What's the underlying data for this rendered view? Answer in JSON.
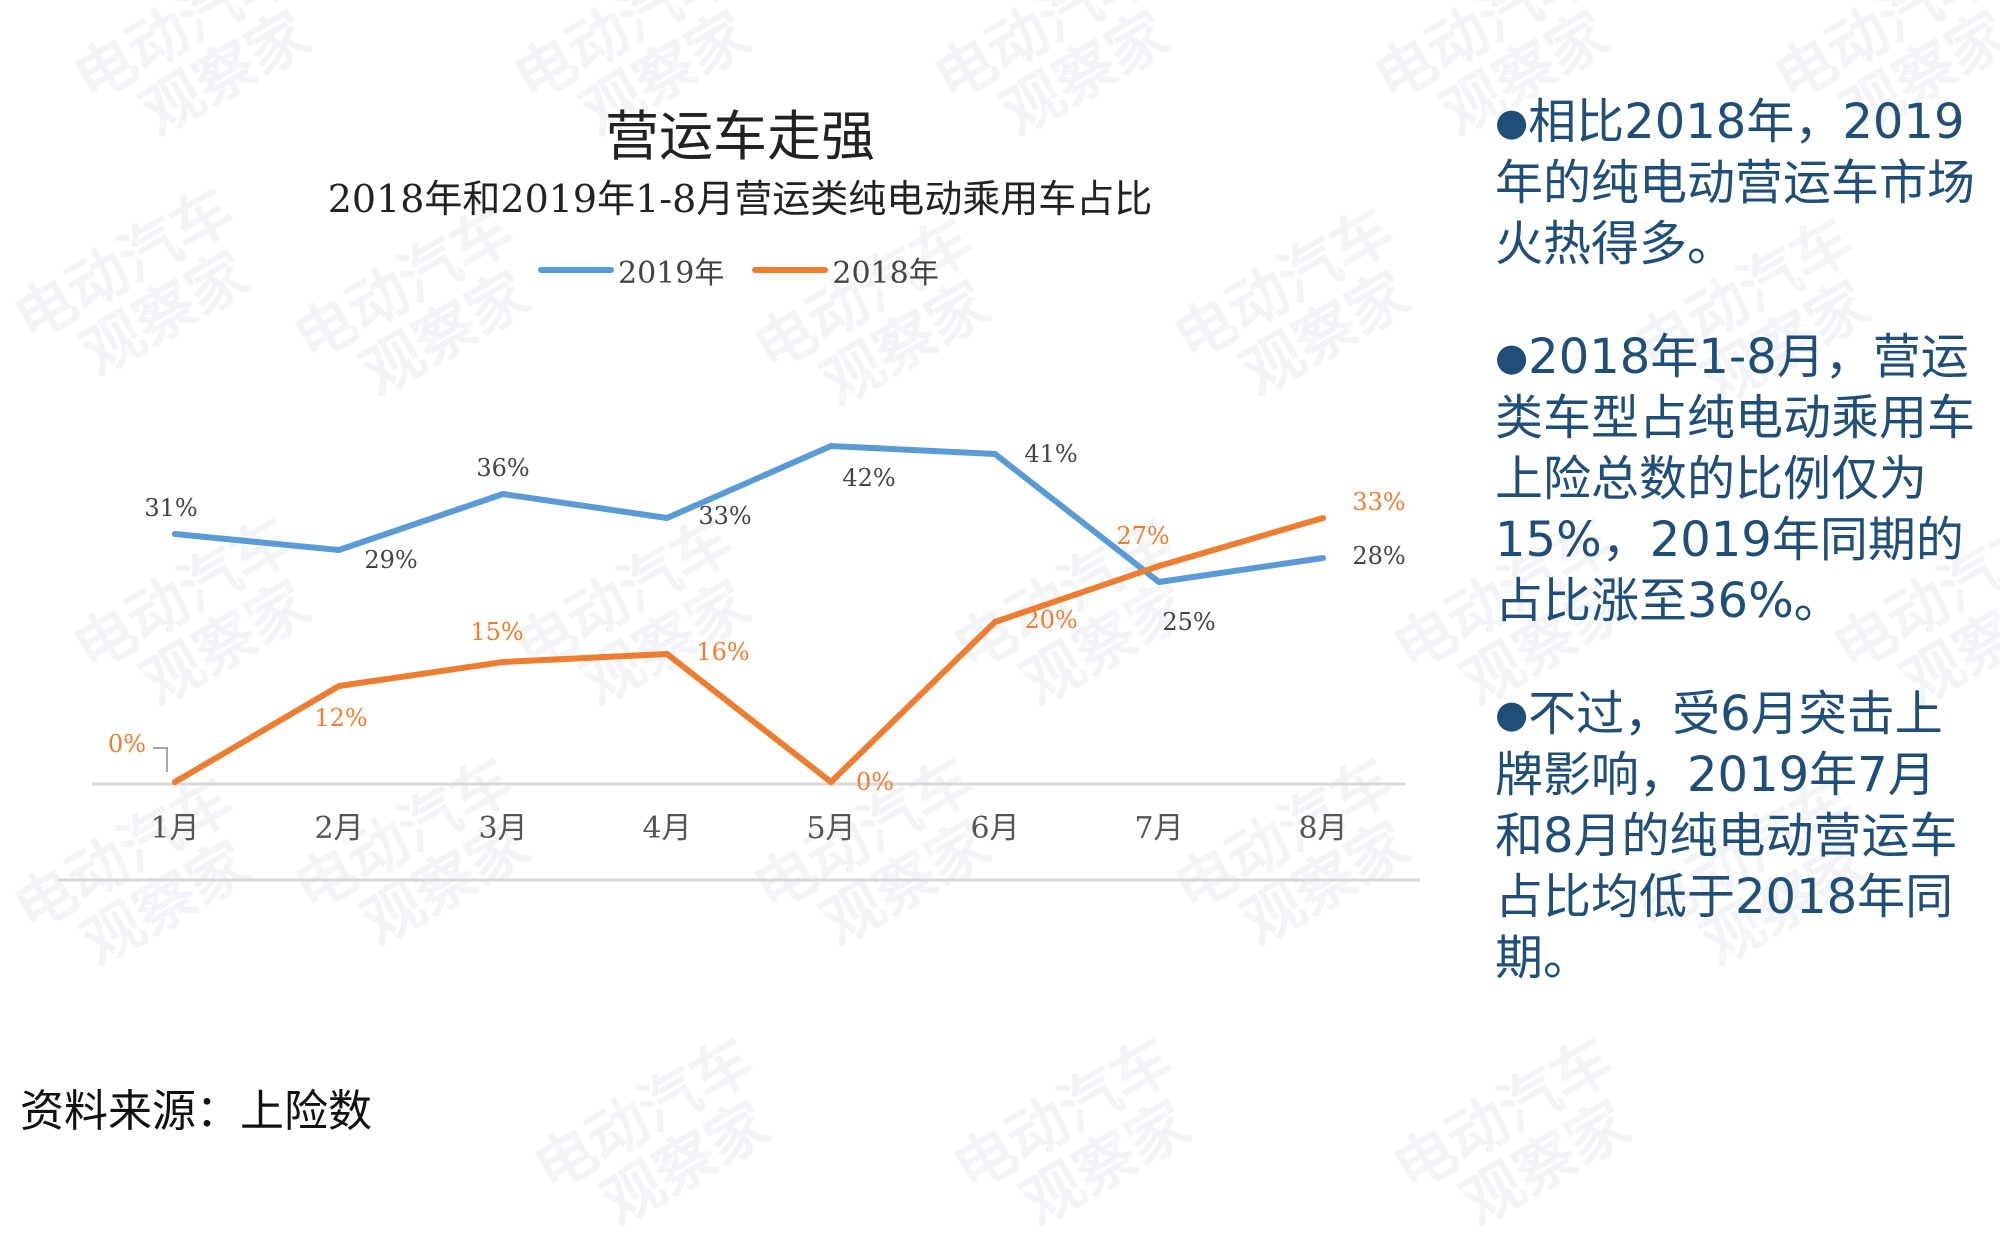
{
  "chart_data": {
    "type": "line",
    "title": "营运车走强",
    "subtitle": "2018年和2019年1-8月营运类纯电动乘用车占比",
    "categories": [
      "1月",
      "2月",
      "3月",
      "4月",
      "5月",
      "6月",
      "7月",
      "8月"
    ],
    "series": [
      {
        "name": "2019年",
        "color": "#5b9bd5",
        "values": [
          31,
          29,
          36,
          33,
          42,
          41,
          25,
          28
        ],
        "labels": [
          "31%",
          "29%",
          "36%",
          "33%",
          "42%",
          "41%",
          "25%",
          "28%"
        ]
      },
      {
        "name": "2018年",
        "color": "#ed7d31",
        "values": [
          0,
          12,
          15,
          16,
          0,
          20,
          27,
          33
        ],
        "labels": [
          "0%",
          "12%",
          "15%",
          "16%",
          "0%",
          "20%",
          "27%",
          "33%"
        ]
      }
    ],
    "ylim": [
      0,
      45
    ],
    "grid": false,
    "legend_position": "top"
  },
  "source": "资料来源：上险数",
  "notes": [
    {
      "bullet": "●",
      "text": "相比2018年，2019年的纯电动营运车市场火热得多。"
    },
    {
      "bullet": "●",
      "text": "2018年1-8月，营运类车型占纯电动乘用车上险总数的比例仅为15%，2019年同期的占比涨至36%。"
    },
    {
      "bullet": "●",
      "text": "不过，受6月突击上牌影响，2019年7月和8月的纯电动营运车占比均低于2018年同期。"
    }
  ],
  "watermark_text": "电动汽车观察家"
}
